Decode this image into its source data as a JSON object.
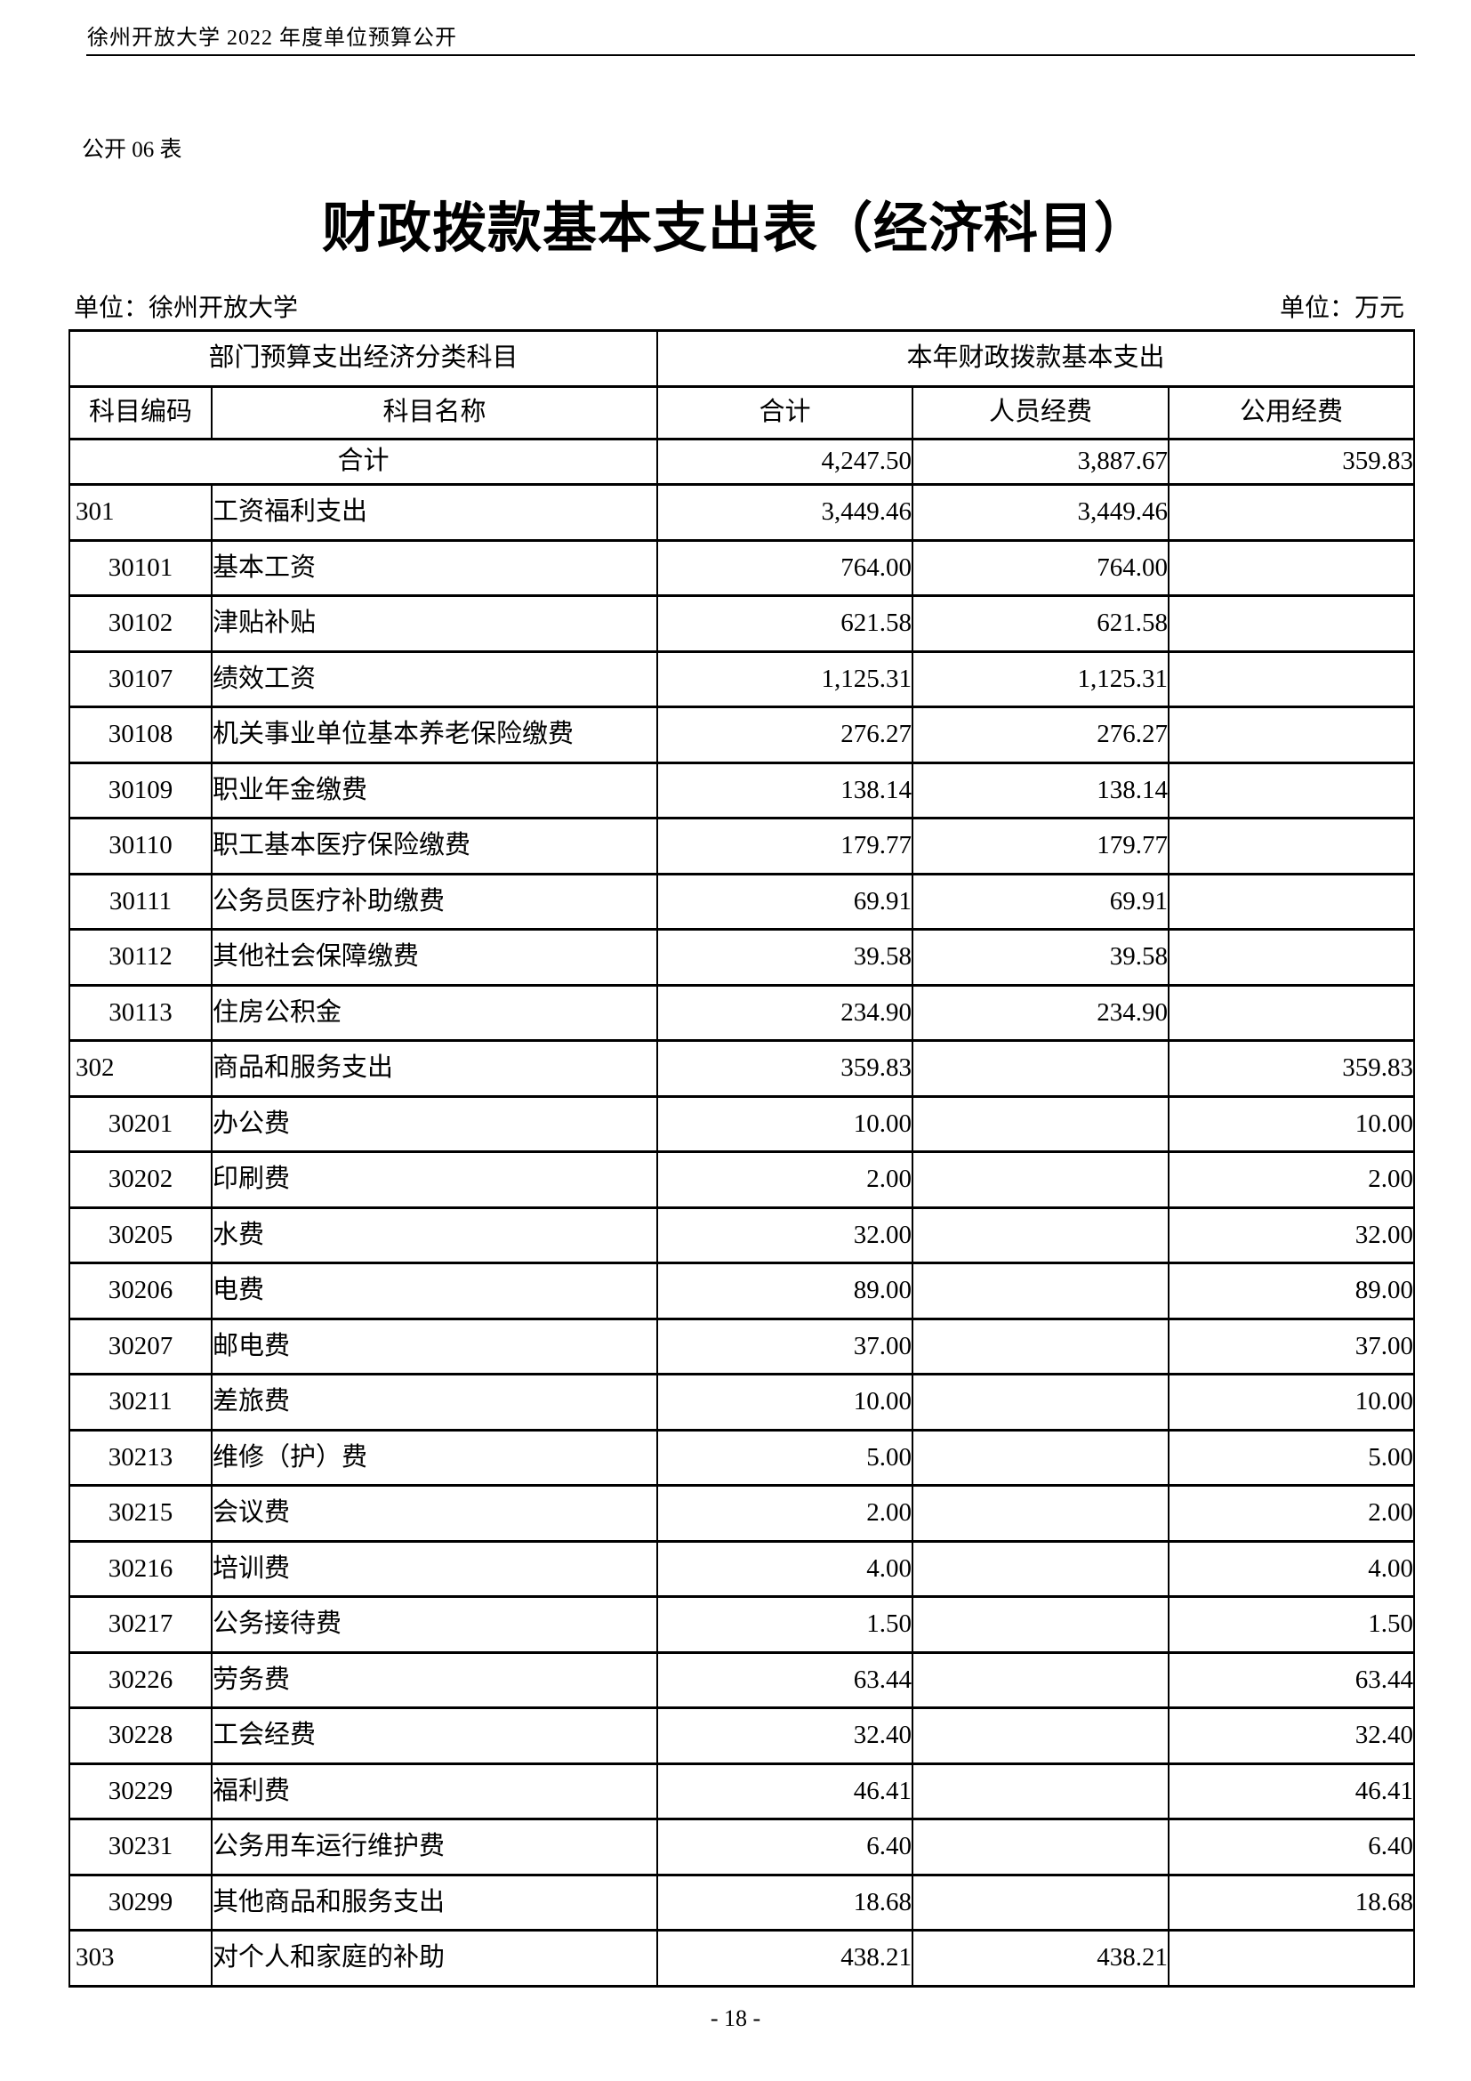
{
  "page": {
    "header_text": "徐州开放大学 2022 年度单位预算公开",
    "table_label": "公开 06 表",
    "title": "财政拨款基本支出表（经济科目）",
    "unit_left": "单位：徐州开放大学",
    "unit_right": "单位：万元",
    "page_number": "- 18 -"
  },
  "colors": {
    "text": "#000000",
    "border": "#000000",
    "background": "#ffffff"
  },
  "table": {
    "group_headers": [
      "部门预算支出经济分类科目",
      "本年财政拨款基本支出"
    ],
    "columns": [
      "科目编码",
      "科目名称",
      "合计",
      "人员经费",
      "公用经费"
    ],
    "total_row": {
      "label": "合计",
      "total": "4,247.50",
      "personnel": "3,887.67",
      "public": "359.83"
    },
    "rows": [
      {
        "code": "301",
        "name": "工资福利支出",
        "total": "3,449.46",
        "personnel": "3,449.46",
        "public": ""
      },
      {
        "code": "30101",
        "name": "基本工资",
        "total": "764.00",
        "personnel": "764.00",
        "public": ""
      },
      {
        "code": "30102",
        "name": "津贴补贴",
        "total": "621.58",
        "personnel": "621.58",
        "public": ""
      },
      {
        "code": "30107",
        "name": "绩效工资",
        "total": "1,125.31",
        "personnel": "1,125.31",
        "public": ""
      },
      {
        "code": "30108",
        "name": "机关事业单位基本养老保险缴费",
        "total": "276.27",
        "personnel": "276.27",
        "public": ""
      },
      {
        "code": "30109",
        "name": "职业年金缴费",
        "total": "138.14",
        "personnel": "138.14",
        "public": ""
      },
      {
        "code": "30110",
        "name": "职工基本医疗保险缴费",
        "total": "179.77",
        "personnel": "179.77",
        "public": ""
      },
      {
        "code": "30111",
        "name": "公务员医疗补助缴费",
        "total": "69.91",
        "personnel": "69.91",
        "public": ""
      },
      {
        "code": "30112",
        "name": "其他社会保障缴费",
        "total": "39.58",
        "personnel": "39.58",
        "public": ""
      },
      {
        "code": "30113",
        "name": "住房公积金",
        "total": "234.90",
        "personnel": "234.90",
        "public": ""
      },
      {
        "code": "302",
        "name": "商品和服务支出",
        "total": "359.83",
        "personnel": "",
        "public": "359.83"
      },
      {
        "code": "30201",
        "name": "办公费",
        "total": "10.00",
        "personnel": "",
        "public": "10.00"
      },
      {
        "code": "30202",
        "name": "印刷费",
        "total": "2.00",
        "personnel": "",
        "public": "2.00"
      },
      {
        "code": "30205",
        "name": "水费",
        "total": "32.00",
        "personnel": "",
        "public": "32.00"
      },
      {
        "code": "30206",
        "name": "电费",
        "total": "89.00",
        "personnel": "",
        "public": "89.00"
      },
      {
        "code": "30207",
        "name": "邮电费",
        "total": "37.00",
        "personnel": "",
        "public": "37.00"
      },
      {
        "code": "30211",
        "name": "差旅费",
        "total": "10.00",
        "personnel": "",
        "public": "10.00"
      },
      {
        "code": "30213",
        "name": "维修（护）费",
        "total": "5.00",
        "personnel": "",
        "public": "5.00"
      },
      {
        "code": "30215",
        "name": "会议费",
        "total": "2.00",
        "personnel": "",
        "public": "2.00"
      },
      {
        "code": "30216",
        "name": "培训费",
        "total": "4.00",
        "personnel": "",
        "public": "4.00"
      },
      {
        "code": "30217",
        "name": "公务接待费",
        "total": "1.50",
        "personnel": "",
        "public": "1.50"
      },
      {
        "code": "30226",
        "name": "劳务费",
        "total": "63.44",
        "personnel": "",
        "public": "63.44"
      },
      {
        "code": "30228",
        "name": "工会经费",
        "total": "32.40",
        "personnel": "",
        "public": "32.40"
      },
      {
        "code": "30229",
        "name": "福利费",
        "total": "46.41",
        "personnel": "",
        "public": "46.41"
      },
      {
        "code": "30231",
        "name": "公务用车运行维护费",
        "total": "6.40",
        "personnel": "",
        "public": "6.40"
      },
      {
        "code": "30299",
        "name": "其他商品和服务支出",
        "total": "18.68",
        "personnel": "",
        "public": "18.68"
      },
      {
        "code": "303",
        "name": "对个人和家庭的补助",
        "total": "438.21",
        "personnel": "438.21",
        "public": ""
      }
    ]
  }
}
